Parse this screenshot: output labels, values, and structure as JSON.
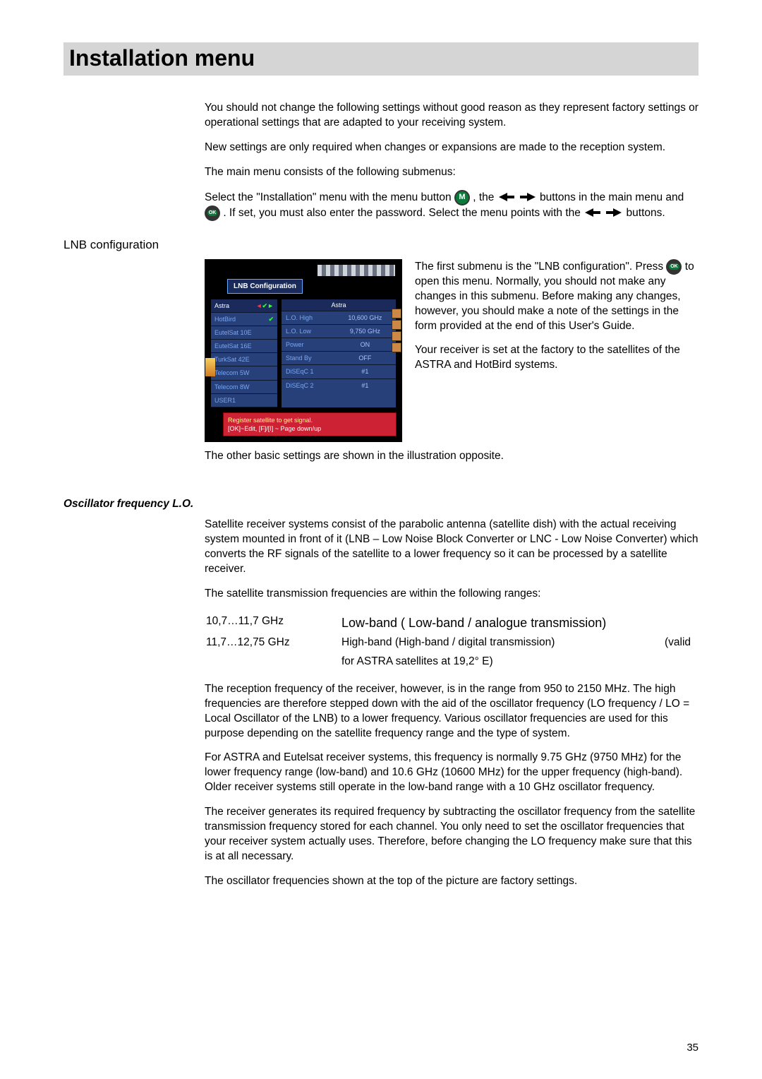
{
  "page_number": "35",
  "title": "Installation menu",
  "intro": {
    "p1": "You should not change the following settings without good reason as they represent factory settings or operational settings that are adapted to your receiving system.",
    "p2": "New settings are only required when changes or expansions are made to the reception system.",
    "p3": "The main menu consists of the following submenus:",
    "sel1a": "Select the \"Installation\" menu with the menu button ",
    "sel1b": ", the ",
    "sel1c": " buttons in the main menu and ",
    "sel1d": ". If set, you must also enter the password. Select the menu points with the ",
    "sel1e": " buttons."
  },
  "icons": {
    "m_letter": "M",
    "ok_letter": "OK"
  },
  "lnb": {
    "heading": "LNB configuration",
    "p1a": "The first submenu is the \"LNB configuration\". Press ",
    "p1b": " to open this menu.  Normally, you should not make any changes in this submenu. Before making any changes, however, you should make a note of the settings in the form provided at the end of this User's Guide.",
    "p2": "Your receiver is set at the factory to the satellites of the ASTRA and HotBird systems.",
    "below": "The other basic settings are shown in the illustration opposite."
  },
  "screenshot": {
    "title": "LNB Configuration",
    "left_rows": [
      {
        "label": "Astra",
        "sel": true,
        "chk": true,
        "arrows": true
      },
      {
        "label": "HotBird",
        "chk": true
      },
      {
        "label": "EutelSat 10E"
      },
      {
        "label": "EutelSat 16E"
      },
      {
        "label": "TurkSat 42E"
      },
      {
        "label": "Telecom 5W"
      },
      {
        "label": "Telecom 8W"
      },
      {
        "label": "USER1"
      }
    ],
    "right_header": "Astra",
    "right_rows": [
      {
        "k": "L.O. High",
        "v": "10,600 GHz"
      },
      {
        "k": "L.O. Low",
        "v": "9,750 GHz"
      },
      {
        "k": "Power",
        "v": "ON"
      },
      {
        "k": "Stand By",
        "v": "OFF"
      },
      {
        "k": "DiSEqC 1",
        "v": "#1"
      },
      {
        "k": "DiSEqC 2",
        "v": "#1"
      }
    ],
    "hint1": "Register satellite to get signal.",
    "hint2": "[OK]~Edit, [F]/[I] ~ Page down/up"
  },
  "osc": {
    "heading": "Oscillator frequency L.O.",
    "p1": "Satellite receiver systems consist of the parabolic antenna (satellite dish) with the actual receiving system mounted in front of it (LNB – Low Noise Block Converter or LNC - Low Noise Converter) which converts the RF signals of the satellite to a lower frequency so it can be processed by a satellite receiver.",
    "p2": "The satellite transmission frequencies are within the following ranges:",
    "rows": [
      {
        "range": "10,7…11,7 GHz",
        "desc": "Low-band ( Low-band / analogue transmission)",
        "big": true,
        "valid": ""
      },
      {
        "range": "11,7…12,75 GHz",
        "desc": "High-band (High-band / digital transmission)   (valid for ASTRA satellites at 19,2° E)",
        "big": false,
        "valid": ""
      }
    ],
    "row2_desc_a": "High-band (High-band / digital transmission)",
    "row2_valid": "(valid",
    "row2_desc_b": "for ASTRA satellites at 19,2° E)",
    "p3": "The reception frequency of the receiver, however, is in the range from 950 to 2150 MHz. The high frequencies are therefore stepped down with the aid of the oscillator frequency (LO frequency / LO = Local Oscillator of the LNB) to a lower frequency. Various oscillator frequencies are used for this purpose depending on the satellite frequency range and the type of system.",
    "p4": "For ASTRA and Eutelsat receiver systems, this frequency is normally 9.75 GHz (9750 MHz) for the lower frequency range (low-band) and 10.6 GHz (10600 MHz) for the upper frequency (high-band). Older receiver systems still operate in the low-band range with a 10 GHz oscillator frequency.",
    "p5": "The receiver generates its required frequency by subtracting the oscillator frequency from the satellite transmission frequency stored for each channel. You only need to set the oscillator frequencies that your receiver system actually uses. Therefore, before changing the LO frequency make sure that this is at all necessary.",
    "p6": "The oscillator frequencies shown at the top of the picture are factory settings."
  }
}
